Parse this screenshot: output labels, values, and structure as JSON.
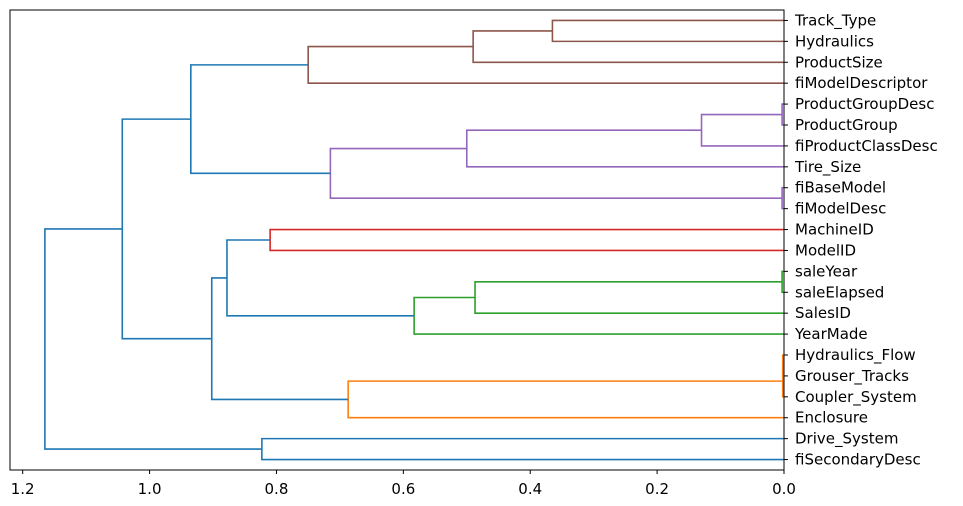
{
  "chart_data": {
    "type": "dendrogram",
    "orientation": "left",
    "xlim": [
      1.22,
      0.0
    ],
    "x_ticks": [
      {
        "value": 1.2,
        "label": "1.2"
      },
      {
        "value": 1.0,
        "label": "1.0"
      },
      {
        "value": 0.8,
        "label": "0.8"
      },
      {
        "value": 0.6,
        "label": "0.6"
      },
      {
        "value": 0.4,
        "label": "0.4"
      },
      {
        "value": 0.2,
        "label": "0.2"
      },
      {
        "value": 0.0,
        "label": "0.0"
      }
    ],
    "grid": false,
    "leaves": [
      "Track_Type",
      "Hydraulics",
      "ProductSize",
      "fiModelDescriptor",
      "ProductGroupDesc",
      "ProductGroup",
      "fiProductClassDesc",
      "Tire_Size",
      "fiBaseModel",
      "fiModelDesc",
      "MachineID",
      "ModelID",
      "saleYear",
      "saleElapsed",
      "SalesID",
      "YearMade",
      "Hydraulics_Flow",
      "Grouser_Tracks",
      "Coupler_System",
      "Enclosure",
      "Drive_System",
      "fiSecondaryDesc"
    ],
    "colors": {
      "brown": "#8c564b",
      "purple": "#9467bd",
      "red": "#d62728",
      "green": "#2ca02c",
      "orange": "#ff7f0e",
      "blue": "#1f77b4"
    },
    "merges": [
      {
        "id": "m1",
        "a": "Track_Type",
        "b": "Hydraulics",
        "height": 0.365,
        "color": "brown"
      },
      {
        "id": "m2",
        "a": "m1",
        "b": "ProductSize",
        "height": 0.49,
        "color": "brown"
      },
      {
        "id": "m3",
        "a": "m2",
        "b": "fiModelDescriptor",
        "height": 0.75,
        "color": "brown"
      },
      {
        "id": "m4",
        "a": "ProductGroupDesc",
        "b": "ProductGroup",
        "height": 0.003,
        "color": "purple"
      },
      {
        "id": "m5",
        "a": "m4",
        "b": "fiProductClassDesc",
        "height": 0.13,
        "color": "purple"
      },
      {
        "id": "m6",
        "a": "m5",
        "b": "Tire_Size",
        "height": 0.5,
        "color": "purple"
      },
      {
        "id": "m7",
        "a": "fiBaseModel",
        "b": "fiModelDesc",
        "height": 0.003,
        "color": "purple"
      },
      {
        "id": "m8",
        "a": "m6",
        "b": "m7",
        "height": 0.715,
        "color": "purple"
      },
      {
        "id": "m9",
        "a": "m3",
        "b": "m8",
        "height": 0.935,
        "color": "blue"
      },
      {
        "id": "m10",
        "a": "MachineID",
        "b": "ModelID",
        "height": 0.81,
        "color": "red"
      },
      {
        "id": "m11",
        "a": "saleYear",
        "b": "saleElapsed",
        "height": 0.003,
        "color": "green"
      },
      {
        "id": "m12",
        "a": "m11",
        "b": "SalesID",
        "height": 0.487,
        "color": "green"
      },
      {
        "id": "m13",
        "a": "m12",
        "b": "YearMade",
        "height": 0.583,
        "color": "green"
      },
      {
        "id": "m14",
        "a": "m10",
        "b": "m13",
        "height": 0.878,
        "color": "blue"
      },
      {
        "id": "m15",
        "a": "Hydraulics_Flow",
        "b": "Grouser_Tracks",
        "height": 0.002,
        "color": "orange"
      },
      {
        "id": "m16",
        "a": "m15",
        "b": "Coupler_System",
        "height": 0.002,
        "color": "orange"
      },
      {
        "id": "m17",
        "a": "m16",
        "b": "Enclosure",
        "height": 0.687,
        "color": "orange"
      },
      {
        "id": "m18",
        "a": "m14",
        "b": "m17",
        "height": 0.902,
        "color": "blue"
      },
      {
        "id": "m19",
        "a": "m9",
        "b": "m18",
        "height": 1.043,
        "color": "blue"
      },
      {
        "id": "m20",
        "a": "Drive_System",
        "b": "fiSecondaryDesc",
        "height": 0.823,
        "color": "blue"
      },
      {
        "id": "m21",
        "a": "m19",
        "b": "m20",
        "height": 1.165,
        "color": "blue"
      }
    ]
  }
}
